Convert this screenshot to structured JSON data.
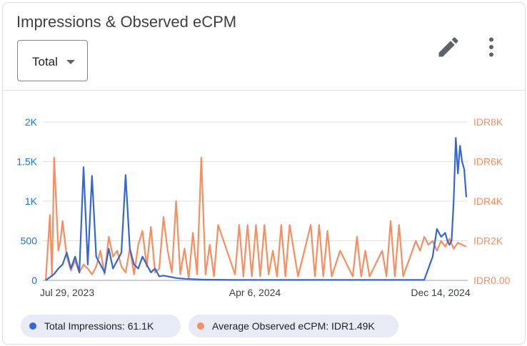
{
  "card": {
    "title": "Impressions & Observed eCPM",
    "dropdown": {
      "selected": "Total"
    },
    "icons": {
      "edit": "pencil-icon",
      "more": "more-vert-icon"
    }
  },
  "legend": {
    "impressions": "Total Impressions: 61.1K",
    "ecpm": "Average Observed eCPM: IDR1.49K"
  },
  "colors": {
    "impressions": "#3367d6",
    "ecpm": "#fb8c5e",
    "accent": "#1a73e8",
    "chip_bg": "#e8eaf6"
  },
  "chart_data": {
    "type": "line",
    "title": "Impressions & Observed eCPM",
    "x_ticks": [
      "Jul 29, 2023",
      "Apr 6, 2024",
      "Dec 14, 2024"
    ],
    "y_left": {
      "label": "Total Impressions",
      "ticks": [
        "0",
        "500",
        "1K",
        "1.5K",
        "2K"
      ],
      "range": [
        0,
        2000
      ]
    },
    "y_right": {
      "label": "Average Observed eCPM",
      "ticks": [
        "IDR0.00",
        "IDR2K",
        "IDR4K",
        "IDR6K",
        "IDR8K"
      ],
      "range": [
        0,
        8000
      ]
    },
    "grid": true,
    "series": [
      {
        "name": "Total Impressions",
        "axis": "left",
        "x_range": [
          0,
          100
        ],
        "x": [
          0,
          2,
          3,
          4,
          5,
          6,
          7,
          8,
          9,
          10,
          11,
          12,
          13,
          14,
          15,
          16,
          17,
          18,
          19,
          20,
          21,
          22,
          23,
          24,
          25,
          26,
          27,
          28,
          29,
          30,
          31,
          33,
          35,
          37,
          40,
          45,
          50,
          55,
          60,
          65,
          70,
          75,
          80,
          85,
          90,
          92,
          93,
          94,
          95,
          95.5,
          96,
          96.5,
          97,
          97.5,
          98,
          98.5,
          99,
          99.5,
          100
        ],
        "values": [
          0,
          80,
          150,
          200,
          350,
          150,
          300,
          100,
          1430,
          200,
          1320,
          300,
          200,
          100,
          400,
          150,
          250,
          350,
          1330,
          400,
          200,
          150,
          300,
          200,
          100,
          150,
          50,
          60,
          50,
          40,
          30,
          20,
          15,
          10,
          8,
          5,
          5,
          5,
          5,
          5,
          5,
          5,
          5,
          5,
          5,
          300,
          650,
          550,
          600,
          500,
          450,
          500,
          1000,
          1800,
          1350,
          1700,
          1500,
          1400,
          1050
        ]
      },
      {
        "name": "Average Observed eCPM",
        "axis": "right",
        "x_range": [
          0,
          100
        ],
        "x": [
          0,
          1,
          1.5,
          2,
          3,
          3.5,
          4,
          5,
          6,
          7,
          8,
          9,
          10,
          11,
          12,
          13,
          14,
          15,
          16,
          17,
          18,
          19,
          20,
          21,
          22,
          23,
          24,
          25,
          26,
          27,
          28,
          29,
          30,
          31,
          32,
          33,
          34,
          35,
          36,
          37,
          38,
          39,
          40,
          41,
          45,
          46,
          47,
          48,
          49,
          50,
          51,
          52,
          53,
          54,
          55,
          56,
          57,
          58,
          60,
          63,
          64,
          65,
          66,
          67,
          68,
          70,
          73,
          74,
          75,
          76,
          77,
          80,
          81,
          82,
          83,
          84,
          85,
          88,
          89,
          90,
          91,
          92,
          93,
          94,
          95,
          96,
          97,
          98,
          99,
          100
        ],
        "values": [
          0,
          3300,
          200,
          6200,
          1500,
          2000,
          3000,
          1200,
          500,
          1000,
          400,
          800,
          600,
          300,
          700,
          1500,
          300,
          2200,
          1200,
          1500,
          700,
          400,
          1600,
          300,
          1800,
          2500,
          700,
          2700,
          400,
          600,
          3200,
          1500,
          400,
          4000,
          300,
          1600,
          100,
          2400,
          300,
          6200,
          300,
          1800,
          200,
          2800,
          300,
          2800,
          200,
          2800,
          200,
          2800,
          200,
          2800,
          300,
          1500,
          200,
          2800,
          200,
          2800,
          200,
          2800,
          200,
          2800,
          200,
          2500,
          200,
          1500,
          200,
          2200,
          200,
          1500,
          200,
          1500,
          200,
          3000,
          200,
          2800,
          200,
          2000,
          1500,
          2200,
          1800,
          2000,
          1500,
          2000,
          1700,
          2100,
          1600,
          1900,
          1800,
          1700
        ]
      }
    ]
  }
}
